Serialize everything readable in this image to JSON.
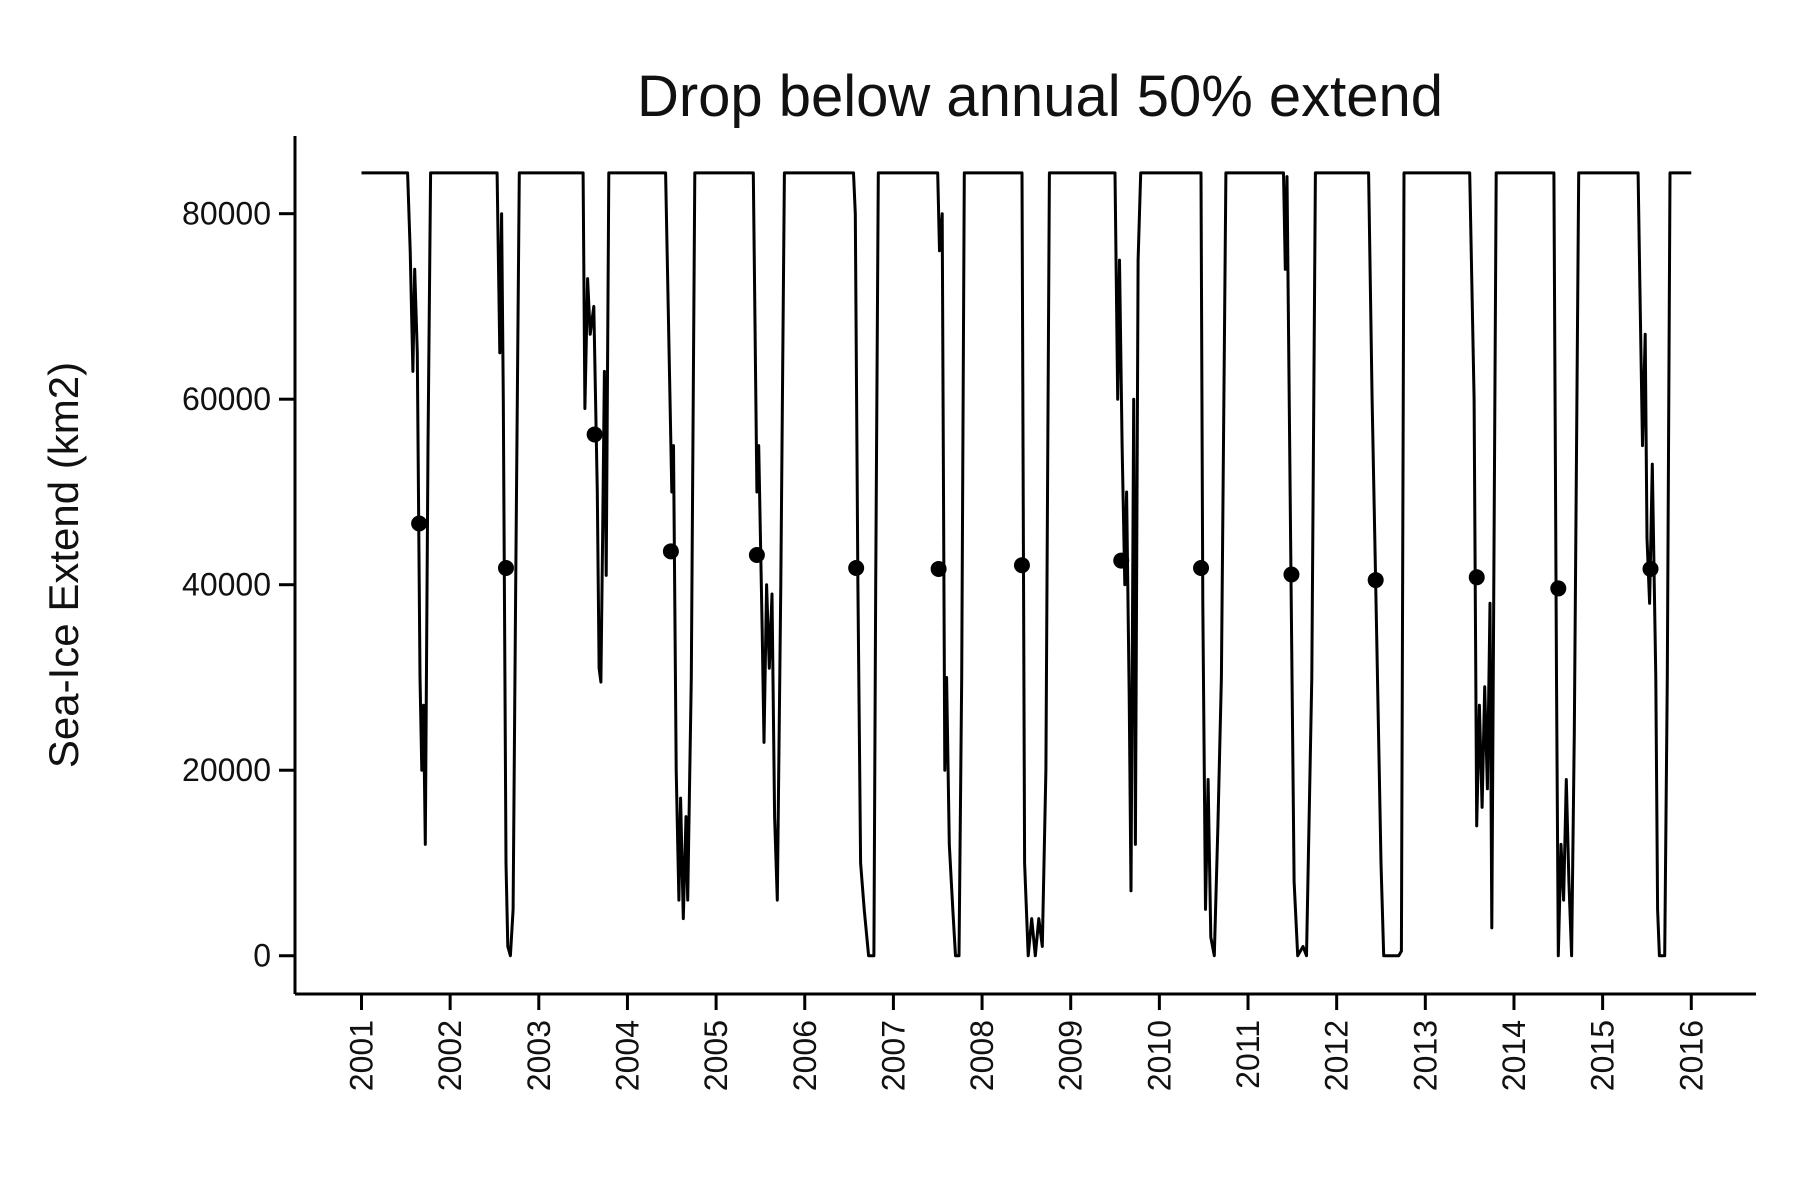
{
  "chart_data": {
    "type": "line",
    "title": "Drop below annual 50% extend",
    "y_label": "Sea-Ice Extend (km2)",
    "xlim": [
      2000.25,
      2016.73
    ],
    "xticks": [
      2001,
      2002,
      2003,
      2004,
      2005,
      2006,
      2007,
      2008,
      2009,
      2010,
      2011,
      2012,
      2013,
      2014,
      2015,
      2016
    ],
    "ylim": [
      -4125,
      88375
    ],
    "yticks": [
      0,
      20000,
      40000,
      60000,
      80000
    ],
    "grid": false,
    "series": [
      {
        "type": "line",
        "color": "#000000",
        "x": [
          2001.0,
          2001.52,
          2001.55,
          2001.58,
          2001.6,
          2001.63,
          2001.66,
          2001.68,
          2001.7,
          2001.72,
          2001.75,
          2001.78,
          2002.53,
          2002.56,
          2002.58,
          2002.6,
          2002.63,
          2002.65,
          2002.68,
          2002.71,
          2002.74,
          2002.78,
          2003.5,
          2003.52,
          2003.55,
          2003.58,
          2003.62,
          2003.66,
          2003.68,
          2003.7,
          2003.72,
          2003.74,
          2003.76,
          2003.79,
          2004.43,
          2004.46,
          2004.5,
          2004.52,
          2004.55,
          2004.58,
          2004.6,
          2004.63,
          2004.66,
          2004.68,
          2004.72,
          2004.76,
          2005.42,
          2005.46,
          2005.48,
          2005.52,
          2005.54,
          2005.57,
          2005.6,
          2005.63,
          2005.66,
          2005.69,
          2005.73,
          2005.77,
          2006.55,
          2006.57,
          2006.6,
          2006.63,
          2006.67,
          2006.72,
          2006.78,
          2006.8,
          2006.83,
          2007.5,
          2007.52,
          2007.55,
          2007.58,
          2007.6,
          2007.63,
          2007.67,
          2007.7,
          2007.74,
          2007.77,
          2007.8,
          2008.45,
          2008.48,
          2008.5,
          2008.52,
          2008.56,
          2008.6,
          2008.64,
          2008.68,
          2008.72,
          2008.76,
          2009.5,
          2009.53,
          2009.55,
          2009.58,
          2009.61,
          2009.63,
          2009.66,
          2009.68,
          2009.71,
          2009.73,
          2009.76,
          2009.79,
          2010.47,
          2010.49,
          2010.5,
          2010.52,
          2010.55,
          2010.58,
          2010.62,
          2010.66,
          2010.7,
          2010.75,
          2011.4,
          2011.42,
          2011.44,
          2011.48,
          2011.52,
          2011.56,
          2011.62,
          2011.66,
          2011.72,
          2011.76,
          2012.36,
          2012.4,
          2012.45,
          2012.5,
          2012.53,
          2012.7,
          2012.73,
          2012.76,
          2013.5,
          2013.55,
          2013.58,
          2013.61,
          2013.64,
          2013.67,
          2013.7,
          2013.73,
          2013.75,
          2013.8,
          2014.45,
          2014.48,
          2014.5,
          2014.53,
          2014.56,
          2014.59,
          2014.62,
          2014.65,
          2014.68,
          2014.73,
          2015.4,
          2015.42,
          2015.45,
          2015.48,
          2015.5,
          2015.53,
          2015.56,
          2015.6,
          2015.62,
          2015.64,
          2015.7,
          2015.73,
          2015.76,
          2016.0
        ],
        "values": [
          84400,
          84400,
          76000,
          63000,
          74000,
          65000,
          30000,
          20000,
          27000,
          12000,
          55000,
          84400,
          84400,
          65000,
          80000,
          60000,
          10000,
          1000,
          0,
          5000,
          40000,
          84400,
          84400,
          59000,
          73000,
          67000,
          70000,
          50000,
          31000,
          29500,
          45000,
          63000,
          41000,
          84400,
          84400,
          70000,
          50000,
          55000,
          20000,
          6000,
          17000,
          4000,
          15000,
          6000,
          30000,
          84400,
          84400,
          50000,
          55000,
          35000,
          23000,
          40000,
          31000,
          39000,
          15000,
          6000,
          40000,
          84400,
          84400,
          80000,
          40000,
          10000,
          5000,
          0,
          0,
          40000,
          84400,
          84400,
          76000,
          80000,
          20000,
          30000,
          12000,
          5000,
          0,
          0,
          30000,
          84400,
          84400,
          10000,
          5000,
          0,
          4000,
          0,
          4000,
          1000,
          20000,
          84400,
          84400,
          60000,
          75000,
          55000,
          40000,
          50000,
          28000,
          7000,
          60000,
          12000,
          75000,
          84400,
          84400,
          38000,
          27000,
          5000,
          19000,
          2000,
          0,
          14000,
          30000,
          84400,
          84400,
          74000,
          84000,
          45000,
          8000,
          0,
          1000,
          0,
          30000,
          84400,
          84400,
          60000,
          35000,
          10000,
          0,
          0,
          500,
          84400,
          84400,
          60000,
          14000,
          27000,
          16000,
          29000,
          18000,
          38000,
          3000,
          84400,
          84400,
          30000,
          0,
          12000,
          6000,
          19000,
          8000,
          0,
          24000,
          84400,
          84400,
          72000,
          55000,
          67000,
          45000,
          38000,
          53000,
          30000,
          5000,
          0,
          0,
          30000,
          84400,
          84400
        ]
      },
      {
        "type": "scatter",
        "color": "#000000",
        "x": [
          2001.65,
          2002.63,
          2003.63,
          2004.49,
          2005.46,
          2006.58,
          2007.51,
          2008.45,
          2009.57,
          2010.47,
          2011.49,
          2012.44,
          2013.58,
          2014.5,
          2015.54
        ],
        "values": [
          46600,
          41800,
          56200,
          43600,
          43200,
          41800,
          41700,
          42100,
          42600,
          41800,
          41100,
          40500,
          40800,
          39600,
          41700
        ]
      }
    ]
  }
}
